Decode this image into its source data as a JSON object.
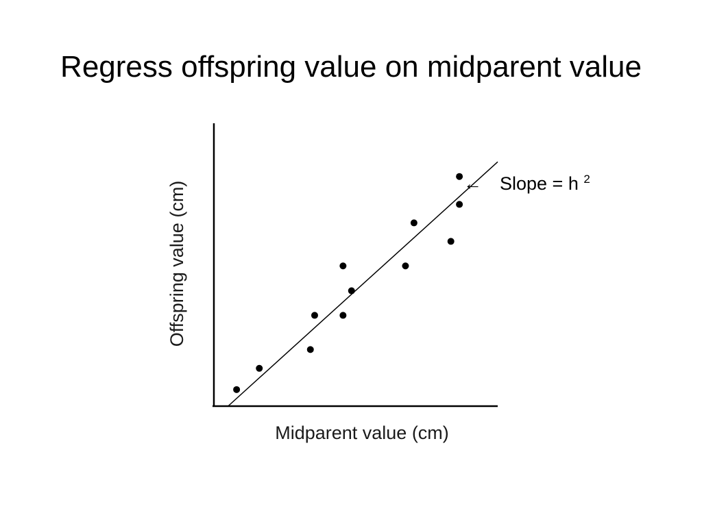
{
  "slide": {
    "title": "Regress offspring value on midparent value"
  },
  "chart_data": {
    "type": "scatter",
    "title": "",
    "xlabel": "Midparent value (cm)",
    "ylabel": "Offspring value (cm)",
    "xlim": [
      0,
      100
    ],
    "ylim": [
      0,
      100
    ],
    "grid": false,
    "tick_labels": false,
    "points": [
      {
        "x": 8,
        "y": 6
      },
      {
        "x": 16,
        "y": 13.7
      },
      {
        "x": 34,
        "y": 20.5
      },
      {
        "x": 35.5,
        "y": 32.9
      },
      {
        "x": 45.5,
        "y": 50.8
      },
      {
        "x": 45.5,
        "y": 32.9
      },
      {
        "x": 48.5,
        "y": 41.8
      },
      {
        "x": 67.5,
        "y": 50.8
      },
      {
        "x": 70.5,
        "y": 66.4
      },
      {
        "x": 83.5,
        "y": 59.7
      },
      {
        "x": 86.5,
        "y": 73.1
      },
      {
        "x": 86.5,
        "y": 83.2
      }
    ],
    "fit_line": {
      "x1": 5,
      "y1": 0,
      "x2": 100,
      "y2": 88.5
    },
    "annotation": {
      "arrow": "←",
      "text": "Slope = h",
      "superscript": "2",
      "target_x": 89.5,
      "target_y": 77.8
    }
  }
}
